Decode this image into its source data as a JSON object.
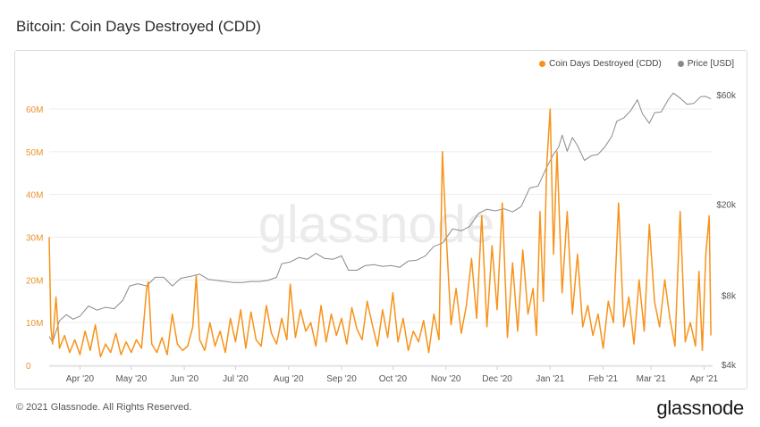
{
  "title": "Bitcoin: Coin Days Destroyed (CDD)",
  "footer": {
    "copyright": "© 2021 Glassnode. All Rights Reserved.",
    "logo": "glassnode",
    "watermark": "glassnode"
  },
  "colors": {
    "cdd": "#f7931a",
    "price": "#8a8a8a",
    "grid": "#ececec",
    "left_axis_text": "#e8942c",
    "right_axis_text": "#555555"
  },
  "chart_data": {
    "type": "line",
    "legend": [
      "Coin Days Destroyed (CDD)",
      "Price [USD]"
    ],
    "legend_position": "top-right",
    "x_tick_labels": [
      "Apr '20",
      "May '20",
      "Jun '20",
      "Jul '20",
      "Aug '20",
      "Sep '20",
      "Oct '20",
      "Nov '20",
      "Dec '20",
      "Jan '21",
      "Feb '21",
      "Mar '21",
      "Apr '21"
    ],
    "xlim": [
      "2020-03-14",
      "2021-04-06"
    ],
    "y_left": {
      "label": "",
      "ticks": [
        "0",
        "10M",
        "20M",
        "30M",
        "40M",
        "50M",
        "60M"
      ],
      "ylim": [
        0,
        60000000
      ]
    },
    "y_right": {
      "label": "",
      "scale": "log",
      "ticks": [
        "$4k",
        "$8k",
        "$20k",
        "$60k"
      ],
      "tick_values": [
        4000,
        8000,
        20000,
        60000
      ],
      "ylim": [
        4000,
        60000
      ]
    },
    "series": [
      {
        "name": "Coin Days Destroyed (CDD)",
        "axis": "left",
        "x": [
          "2020-03-14",
          "2020-03-15",
          "2020-03-16",
          "2020-03-18",
          "2020-03-20",
          "2020-03-23",
          "2020-03-26",
          "2020-03-29",
          "2020-04-01",
          "2020-04-04",
          "2020-04-07",
          "2020-04-10",
          "2020-04-13",
          "2020-04-16",
          "2020-04-19",
          "2020-04-22",
          "2020-04-25",
          "2020-04-28",
          "2020-05-01",
          "2020-05-04",
          "2020-05-07",
          "2020-05-10",
          "2020-05-11",
          "2020-05-13",
          "2020-05-16",
          "2020-05-19",
          "2020-05-22",
          "2020-05-25",
          "2020-05-28",
          "2020-05-31",
          "2020-06-03",
          "2020-06-06",
          "2020-06-08",
          "2020-06-10",
          "2020-06-13",
          "2020-06-16",
          "2020-06-19",
          "2020-06-22",
          "2020-06-25",
          "2020-06-28",
          "2020-07-01",
          "2020-07-04",
          "2020-07-07",
          "2020-07-10",
          "2020-07-13",
          "2020-07-16",
          "2020-07-19",
          "2020-07-22",
          "2020-07-25",
          "2020-07-28",
          "2020-07-31",
          "2020-08-02",
          "2020-08-05",
          "2020-08-08",
          "2020-08-11",
          "2020-08-14",
          "2020-08-17",
          "2020-08-20",
          "2020-08-23",
          "2020-08-26",
          "2020-08-29",
          "2020-09-01",
          "2020-09-04",
          "2020-09-07",
          "2020-09-10",
          "2020-09-13",
          "2020-09-16",
          "2020-09-19",
          "2020-09-22",
          "2020-09-25",
          "2020-09-28",
          "2020-10-01",
          "2020-10-04",
          "2020-10-07",
          "2020-10-10",
          "2020-10-13",
          "2020-10-16",
          "2020-10-19",
          "2020-10-22",
          "2020-10-25",
          "2020-10-28",
          "2020-10-30",
          "2020-11-01",
          "2020-11-04",
          "2020-11-07",
          "2020-11-10",
          "2020-11-13",
          "2020-11-16",
          "2020-11-19",
          "2020-11-22",
          "2020-11-25",
          "2020-11-28",
          "2020-12-01",
          "2020-12-04",
          "2020-12-07",
          "2020-12-10",
          "2020-12-13",
          "2020-12-16",
          "2020-12-19",
          "2020-12-22",
          "2020-12-24",
          "2020-12-26",
          "2020-12-28",
          "2020-12-30",
          "2021-01-01",
          "2021-01-03",
          "2021-01-05",
          "2021-01-08",
          "2021-01-11",
          "2021-01-14",
          "2021-01-17",
          "2021-01-20",
          "2021-01-23",
          "2021-01-26",
          "2021-01-29",
          "2021-02-01",
          "2021-02-04",
          "2021-02-07",
          "2021-02-10",
          "2021-02-13",
          "2021-02-16",
          "2021-02-19",
          "2021-02-22",
          "2021-02-25",
          "2021-02-28",
          "2021-03-03",
          "2021-03-06",
          "2021-03-09",
          "2021-03-12",
          "2021-03-15",
          "2021-03-18",
          "2021-03-21",
          "2021-03-24",
          "2021-03-27",
          "2021-03-29",
          "2021-03-31",
          "2021-04-02",
          "2021-04-04",
          "2021-04-05"
        ],
        "values": [
          30000000,
          9000000,
          5000000,
          16000000,
          4000000,
          7000000,
          3000000,
          6000000,
          2500000,
          8000000,
          3500000,
          9500000,
          2000000,
          5000000,
          3000000,
          7500000,
          2500000,
          5500000,
          3000000,
          6000000,
          4000000,
          18000000,
          19500000,
          5000000,
          3000000,
          6500000,
          2500000,
          12000000,
          5000000,
          3500000,
          4500000,
          9000000,
          21000000,
          6000000,
          3500000,
          10000000,
          4500000,
          8000000,
          3000000,
          11000000,
          5500000,
          13000000,
          4000000,
          12500000,
          6000000,
          4500000,
          14000000,
          7500000,
          5000000,
          11000000,
          6000000,
          19000000,
          6500000,
          13000000,
          8000000,
          10000000,
          4500000,
          14000000,
          5500000,
          12000000,
          7000000,
          11000000,
          5000000,
          13500000,
          8500000,
          6000000,
          15000000,
          9500000,
          4500000,
          13000000,
          6500000,
          17000000,
          5500000,
          11000000,
          3500000,
          8000000,
          5500000,
          10500000,
          3000000,
          12000000,
          6000000,
          50000000,
          32000000,
          9500000,
          18000000,
          7500000,
          14000000,
          25000000,
          11000000,
          35000000,
          9000000,
          28000000,
          13000000,
          38000000,
          6500000,
          24000000,
          8000000,
          27000000,
          12000000,
          18000000,
          7000000,
          36000000,
          15000000,
          47000000,
          60000000,
          26000000,
          50000000,
          17000000,
          36000000,
          12000000,
          26000000,
          9000000,
          14000000,
          7000000,
          12000000,
          4000000,
          15000000,
          10000000,
          38000000,
          9000000,
          16000000,
          5000000,
          20000000,
          8000000,
          33000000,
          15000000,
          9000000,
          20000000,
          11000000,
          4500000,
          36000000,
          5500000,
          10000000,
          4500000,
          22000000,
          3500000,
          26000000,
          35000000,
          7000000
        ]
      },
      {
        "name": "Price [USD]",
        "axis": "right",
        "x": [
          "2020-03-14",
          "2020-03-16",
          "2020-03-20",
          "2020-03-24",
          "2020-03-28",
          "2020-04-01",
          "2020-04-06",
          "2020-04-11",
          "2020-04-16",
          "2020-04-21",
          "2020-04-26",
          "2020-04-30",
          "2020-05-05",
          "2020-05-10",
          "2020-05-15",
          "2020-05-20",
          "2020-05-25",
          "2020-05-30",
          "2020-06-05",
          "2020-06-10",
          "2020-06-15",
          "2020-06-20",
          "2020-06-25",
          "2020-06-30",
          "2020-07-05",
          "2020-07-10",
          "2020-07-15",
          "2020-07-20",
          "2020-07-25",
          "2020-07-28",
          "2020-08-02",
          "2020-08-07",
          "2020-08-12",
          "2020-08-17",
          "2020-08-22",
          "2020-08-27",
          "2020-09-01",
          "2020-09-05",
          "2020-09-10",
          "2020-09-15",
          "2020-09-20",
          "2020-09-25",
          "2020-09-30",
          "2020-10-05",
          "2020-10-10",
          "2020-10-15",
          "2020-10-20",
          "2020-10-25",
          "2020-10-30",
          "2020-11-05",
          "2020-11-10",
          "2020-11-15",
          "2020-11-20",
          "2020-11-25",
          "2020-11-30",
          "2020-12-05",
          "2020-12-10",
          "2020-12-15",
          "2020-12-20",
          "2020-12-25",
          "2020-12-30",
          "2021-01-03",
          "2021-01-06",
          "2021-01-08",
          "2021-01-11",
          "2021-01-14",
          "2021-01-17",
          "2021-01-21",
          "2021-01-25",
          "2021-01-29",
          "2021-02-02",
          "2021-02-06",
          "2021-02-09",
          "2021-02-13",
          "2021-02-17",
          "2021-02-21",
          "2021-02-24",
          "2021-02-28",
          "2021-03-03",
          "2021-03-07",
          "2021-03-11",
          "2021-03-14",
          "2021-03-18",
          "2021-03-22",
          "2021-03-26",
          "2021-03-30",
          "2021-04-02",
          "2021-04-05"
        ],
        "values": [
          5300,
          5000,
          6200,
          6600,
          6300,
          6500,
          7200,
          6900,
          7100,
          7000,
          7600,
          8800,
          9000,
          8800,
          9600,
          9600,
          8800,
          9500,
          9700,
          9900,
          9400,
          9300,
          9200,
          9100,
          9100,
          9200,
          9200,
          9300,
          9600,
          11000,
          11200,
          11700,
          11500,
          12200,
          11600,
          11500,
          11900,
          10300,
          10300,
          10800,
          10900,
          10700,
          10800,
          10600,
          11300,
          11400,
          11900,
          13100,
          13500,
          15600,
          15300,
          16000,
          18200,
          19000,
          18700,
          19100,
          18500,
          19500,
          23500,
          24000,
          29000,
          33000,
          35500,
          40000,
          34000,
          39000,
          36000,
          31000,
          32500,
          33000,
          35500,
          39500,
          46000,
          47500,
          51000,
          57000,
          49500,
          45000,
          50000,
          50500,
          57000,
          61000,
          58000,
          54500,
          55000,
          58800,
          59000,
          57500
        ]
      }
    ]
  }
}
